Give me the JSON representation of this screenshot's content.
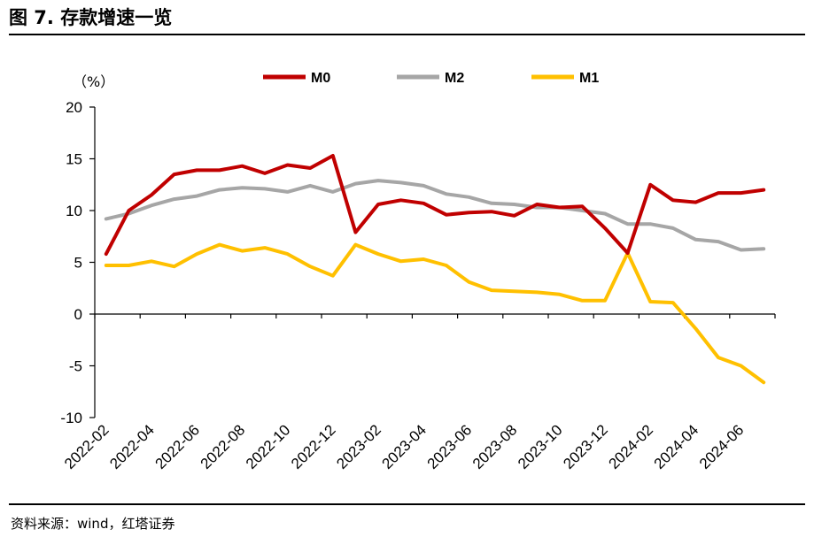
{
  "header": {
    "title": "图 7. 存款增速一览"
  },
  "footer": {
    "source": "资料来源：wind，红塔证券"
  },
  "chart_data": {
    "type": "line",
    "title": "存款增速一览",
    "ylabel": "（%）",
    "xlabel": "",
    "ylim": [
      -10,
      20
    ],
    "yticks": [
      -10,
      -5,
      0,
      5,
      10,
      15,
      20
    ],
    "grid": false,
    "legend": "top",
    "colors": {
      "M0": "#c00000",
      "M2": "#a6a6a6",
      "M1": "#ffc000"
    },
    "x": [
      "2022-02",
      "2022-03",
      "2022-04",
      "2022-05",
      "2022-06",
      "2022-07",
      "2022-08",
      "2022-09",
      "2022-10",
      "2022-11",
      "2022-12",
      "2023-01",
      "2023-02",
      "2023-03",
      "2023-04",
      "2023-05",
      "2023-06",
      "2023-07",
      "2023-08",
      "2023-09",
      "2023-10",
      "2023-11",
      "2023-12",
      "2024-01",
      "2024-02",
      "2024-03",
      "2024-04",
      "2024-05",
      "2024-06",
      "2024-07"
    ],
    "xtick_labels": [
      "2022-02",
      "2022-04",
      "2022-06",
      "2022-08",
      "2022-10",
      "2022-12",
      "2023-02",
      "2023-04",
      "2023-06",
      "2023-08",
      "2023-10",
      "2023-12",
      "2024-02",
      "2024-04",
      "2024-06"
    ],
    "series": [
      {
        "name": "M0",
        "values": [
          5.8,
          10.0,
          11.5,
          13.5,
          13.9,
          13.9,
          14.3,
          13.6,
          14.4,
          14.1,
          15.3,
          7.9,
          10.6,
          11.0,
          10.7,
          9.6,
          9.8,
          9.9,
          9.5,
          10.6,
          10.3,
          10.4,
          8.3,
          5.9,
          12.5,
          11.0,
          10.8,
          11.7,
          11.7,
          12.0
        ]
      },
      {
        "name": "M2",
        "values": [
          9.2,
          9.7,
          10.5,
          11.1,
          11.4,
          12.0,
          12.2,
          12.1,
          11.8,
          12.4,
          11.8,
          12.6,
          12.9,
          12.7,
          12.4,
          11.6,
          11.3,
          10.7,
          10.6,
          10.3,
          10.3,
          10.0,
          9.7,
          8.7,
          8.7,
          8.3,
          7.2,
          7.0,
          6.2,
          6.3
        ]
      },
      {
        "name": "M1",
        "values": [
          4.7,
          4.7,
          5.1,
          4.6,
          5.8,
          6.7,
          6.1,
          6.4,
          5.8,
          4.6,
          3.7,
          6.7,
          5.8,
          5.1,
          5.3,
          4.7,
          3.1,
          2.3,
          2.2,
          2.1,
          1.9,
          1.3,
          1.3,
          5.9,
          1.2,
          1.1,
          -1.4,
          -4.2,
          -5.0,
          -6.6
        ]
      }
    ]
  }
}
